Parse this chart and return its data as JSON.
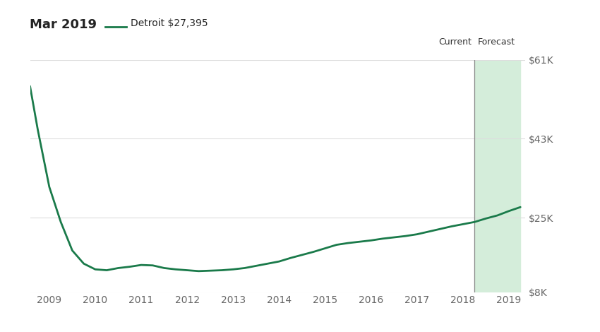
{
  "title_date": "Mar 2019",
  "legend_label": "Detroit $27,395",
  "line_color": "#1a7a4a",
  "forecast_color": "#d4edda",
  "current_label": "Current",
  "forecast_label": "Forecast",
  "ytick_labels": [
    "$8K",
    "$25K",
    "$43K",
    "$61K"
  ],
  "ytick_values": [
    8000,
    25000,
    43000,
    61000
  ],
  "ylim": [
    8000,
    61000
  ],
  "xlim_start": 2008.58,
  "xlim_end": 2019.35,
  "current_x": 2018.25,
  "forecast_end_x": 2019.25,
  "xtick_labels": [
    "2009",
    "2010",
    "2011",
    "2012",
    "2013",
    "2014",
    "2015",
    "2016",
    "2017",
    "2018",
    "2019"
  ],
  "xtick_values": [
    2009,
    2010,
    2011,
    2012,
    2013,
    2014,
    2015,
    2016,
    2017,
    2018,
    2019
  ],
  "data_x": [
    2008.58,
    2008.75,
    2009.0,
    2009.25,
    2009.5,
    2009.75,
    2010.0,
    2010.25,
    2010.5,
    2010.75,
    2011.0,
    2011.25,
    2011.5,
    2011.75,
    2012.0,
    2012.25,
    2012.5,
    2012.75,
    2013.0,
    2013.25,
    2013.5,
    2013.75,
    2014.0,
    2014.25,
    2014.5,
    2014.75,
    2015.0,
    2015.25,
    2015.5,
    2015.75,
    2016.0,
    2016.25,
    2016.5,
    2016.75,
    2017.0,
    2017.25,
    2017.5,
    2017.75,
    2018.0,
    2018.25,
    2018.5,
    2018.75,
    2019.0,
    2019.25
  ],
  "data_y": [
    55000,
    45000,
    32000,
    24000,
    17500,
    14500,
    13200,
    13000,
    13500,
    13800,
    14200,
    14100,
    13500,
    13200,
    13000,
    12800,
    12900,
    13000,
    13200,
    13500,
    14000,
    14500,
    15000,
    15800,
    16500,
    17200,
    18000,
    18800,
    19200,
    19500,
    19800,
    20200,
    20500,
    20800,
    21200,
    21800,
    22400,
    23000,
    23500,
    24000,
    24800,
    25500,
    26500,
    27395
  ],
  "background_color": "#ffffff",
  "grid_color": "#dddddd",
  "axis_label_color": "#666666",
  "title_color": "#222222",
  "vline_color": "#888888"
}
